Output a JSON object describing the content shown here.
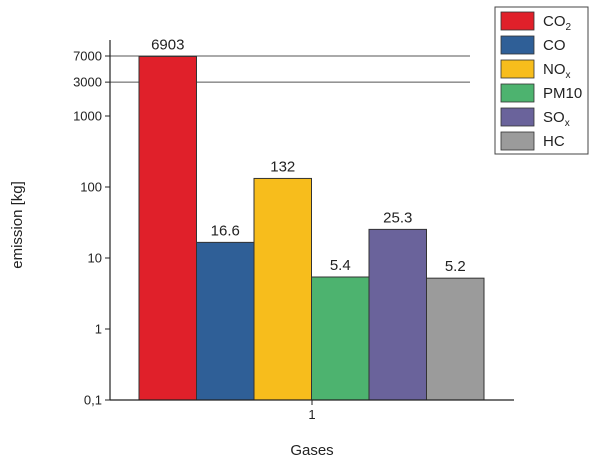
{
  "chart_data": {
    "type": "bar",
    "title": "",
    "xlabel": "Gases",
    "ylabel": "emission [kg]",
    "y_scale": "log",
    "ylim": [
      0.1,
      10000
    ],
    "y_ticks": [
      {
        "value": 0.1,
        "label": "0,1"
      },
      {
        "value": 1,
        "label": "1"
      },
      {
        "value": 10,
        "label": "10"
      },
      {
        "value": 100,
        "label": "100"
      },
      {
        "value": 1000,
        "label": "1000"
      },
      {
        "value": 3000,
        "label": "3000"
      },
      {
        "value": 7000,
        "label": "7000"
      }
    ],
    "x_tick_label": "1",
    "grid": "horizontal lines at 3000 and 7000 only",
    "legend_position": "top-right",
    "series": [
      {
        "legend_main": "CO",
        "legend_sub": "2",
        "value": 6903,
        "label": "6903",
        "color": "#e0202a"
      },
      {
        "legend_main": "CO",
        "legend_sub": "",
        "value": 16.6,
        "label": "16.6",
        "color": "#2f5f97"
      },
      {
        "legend_main": "NO",
        "legend_sub": "x",
        "value": 132,
        "label": "132",
        "color": "#f7bd1c"
      },
      {
        "legend_main": "PM10",
        "legend_sub": "",
        "value": 5.4,
        "label": "5.4",
        "color": "#4db36f"
      },
      {
        "legend_main": "SO",
        "legend_sub": "x",
        "value": 25.3,
        "label": "25.3",
        "color": "#6a639b"
      },
      {
        "legend_main": "HC",
        "legend_sub": "",
        "value": 5.2,
        "label": "5.2",
        "color": "#9b9b9b"
      }
    ]
  }
}
